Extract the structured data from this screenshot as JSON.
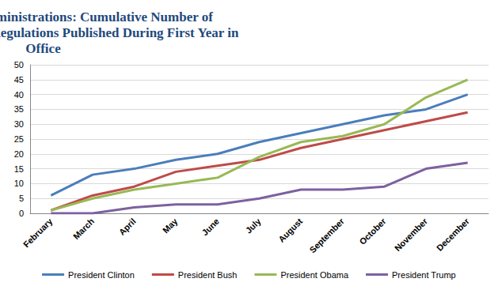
{
  "chart_data": {
    "type": "line",
    "title": "Differences Across Administrations: Cumulative Number of Economically Significant Regulations Published During First Year in Office",
    "categories": [
      "February",
      "March",
      "April",
      "May",
      "June",
      "July",
      "August",
      "September",
      "October",
      "November",
      "December"
    ],
    "series": [
      {
        "name": "President Clinton",
        "color": "#4a7ebb",
        "values": [
          6,
          13,
          15,
          18,
          20,
          24,
          27,
          30,
          33,
          35,
          40
        ]
      },
      {
        "name": "President Bush",
        "color": "#be4b48",
        "values": [
          1,
          6,
          9,
          14,
          16,
          18,
          22,
          25,
          28,
          31,
          34
        ]
      },
      {
        "name": "President Obama",
        "color": "#98b954",
        "values": [
          1,
          5,
          8,
          10,
          12,
          19,
          24,
          26,
          30,
          39,
          45
        ]
      },
      {
        "name": "President Trump",
        "color": "#7d60a0",
        "values": [
          0,
          0,
          2,
          3,
          3,
          5,
          8,
          8,
          9,
          15,
          17
        ]
      }
    ],
    "ylim": [
      0,
      50
    ],
    "yticks": [
      0,
      5,
      10,
      15,
      20,
      25,
      30,
      35,
      40,
      45,
      50
    ],
    "grid": true,
    "legend": "bottom",
    "marker": "none"
  }
}
